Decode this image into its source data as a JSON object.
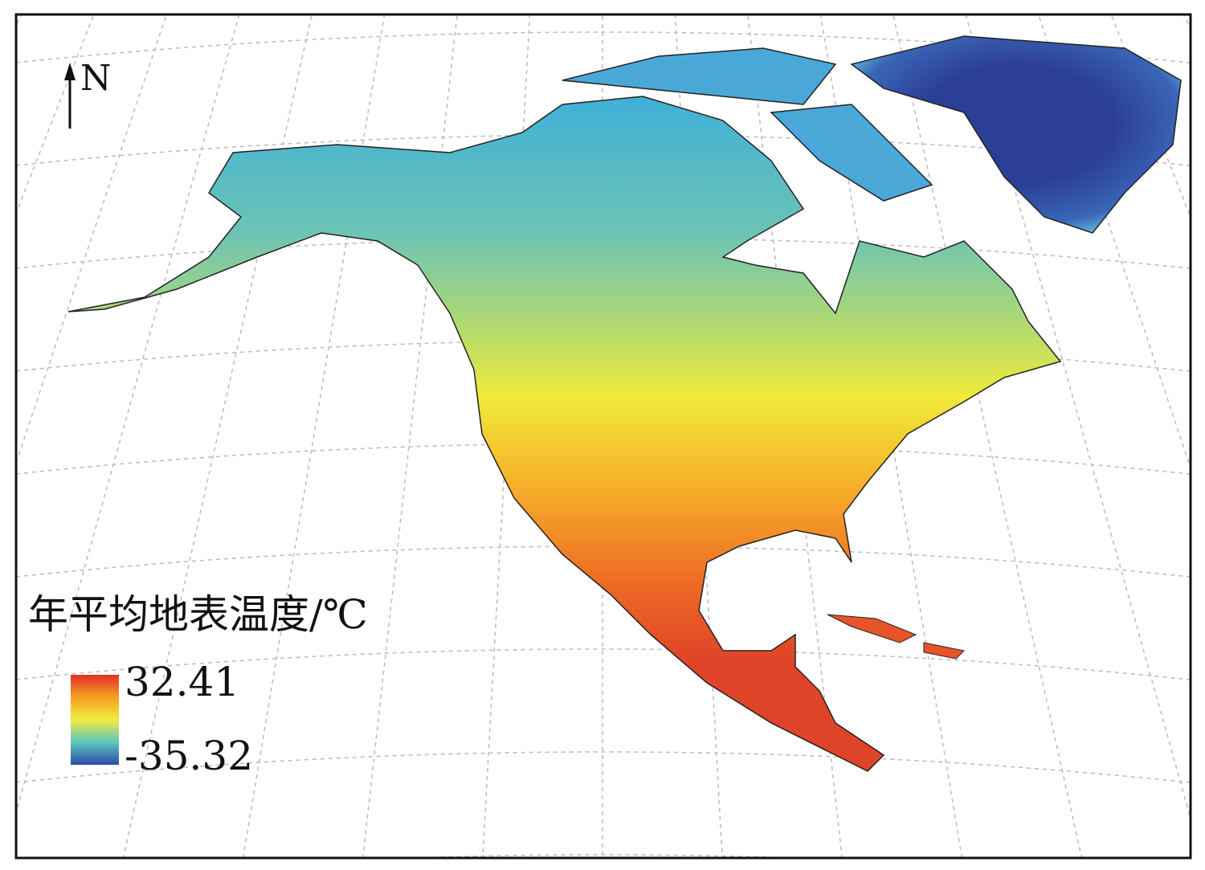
{
  "north_label": "N",
  "legend": {
    "title": "年平均地表温度/℃",
    "max": 32.41,
    "min": -35.32
  }
}
